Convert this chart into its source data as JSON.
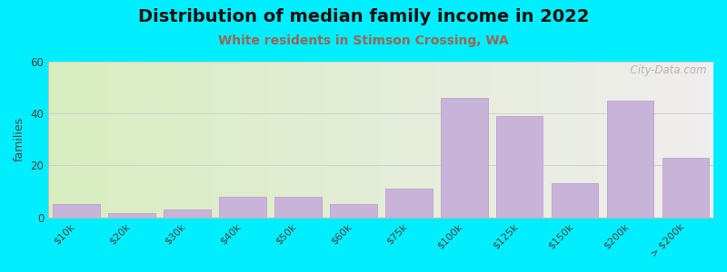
{
  "title": "Distribution of median family income in 2022",
  "subtitle": "White residents in Stimson Crossing, WA",
  "categories": [
    "$10k",
    "$20k",
    "$30k",
    "$40k",
    "$50k",
    "$60k",
    "$75k",
    "$100k",
    "$125k",
    "$150k",
    "$200k",
    "> $200k"
  ],
  "values": [
    5,
    1.5,
    3,
    8,
    8,
    5,
    11,
    46,
    39,
    13,
    45,
    23
  ],
  "bar_color": "#c8b4d8",
  "bar_edge_color": "#b898cc",
  "background_outer": "#00eeff",
  "background_inner_left": "#d8edc0",
  "background_inner_right": "#f0eeee",
  "ylabel": "families",
  "ylim": [
    0,
    60
  ],
  "yticks": [
    0,
    20,
    40,
    60
  ],
  "title_fontsize": 14,
  "subtitle_fontsize": 10,
  "subtitle_color": "#996655",
  "watermark": "  City-Data.com"
}
